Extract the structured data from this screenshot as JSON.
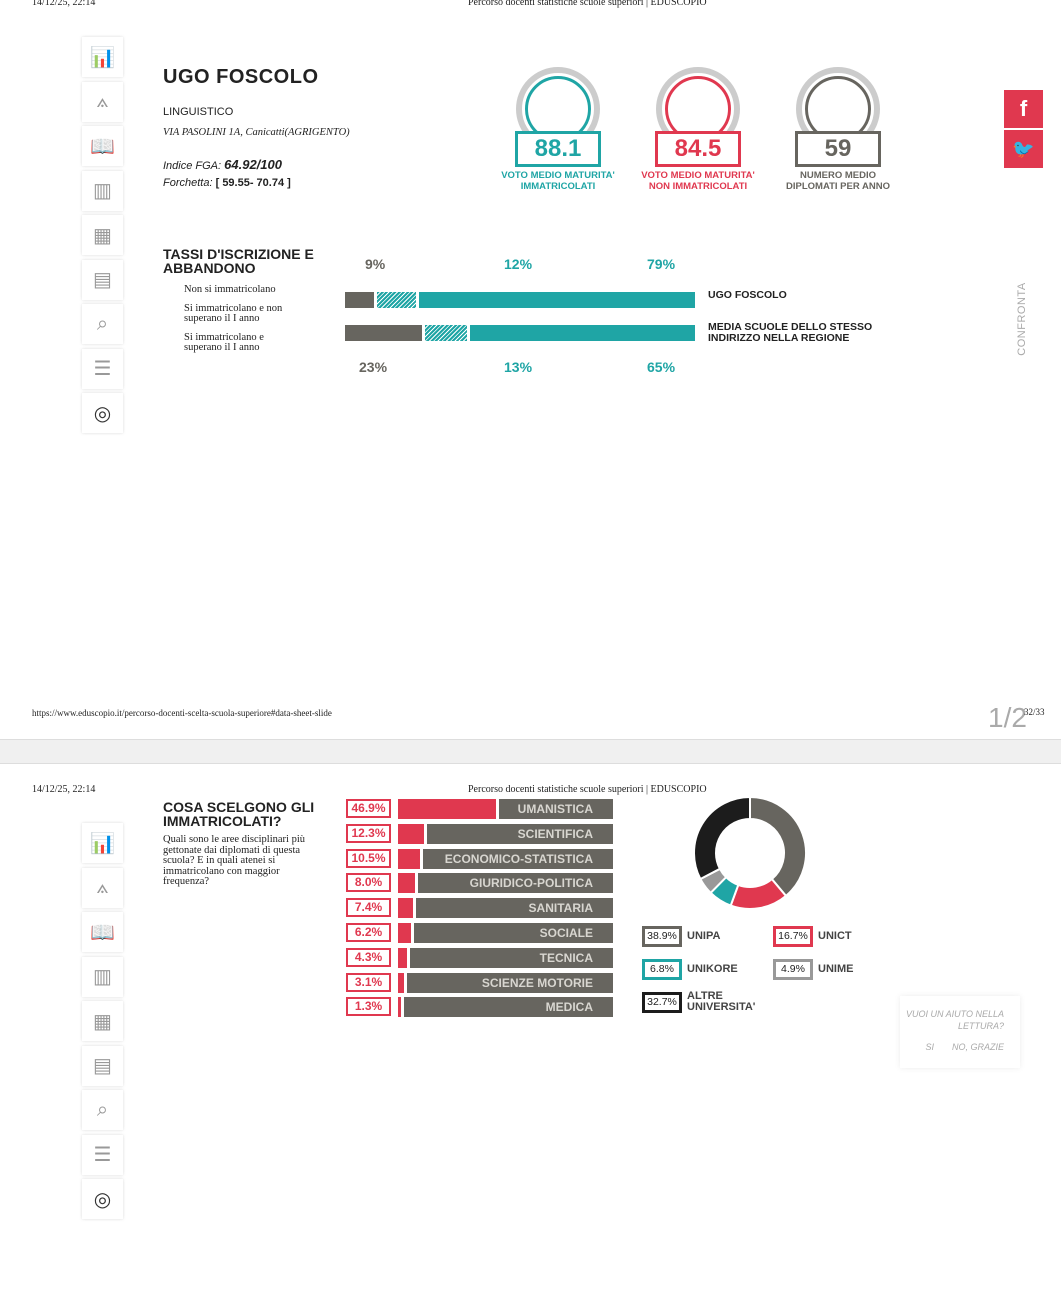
{
  "print_header": {
    "date": "14/12/25, 22:14",
    "title": "Percorso docenti statistiche scuole superiori | EDUSCOPIO"
  },
  "print_footer": {
    "url": "https://www.eduscopio.it/percorso-docenti-scelta-scuola-superiore#data-sheet-slide",
    "page": "32/33",
    "slide_counter": "1/2"
  },
  "sidebar": {
    "icons": [
      "chart-bars-icon",
      "compass-icon",
      "book-icon",
      "library-icon",
      "classroom-icon",
      "certificate-icon",
      "search-icon",
      "list-icon",
      "compare-disc-icon"
    ]
  },
  "school": {
    "name": "UGO FOSCOLO",
    "type": "LINGUISTICO",
    "address": "VIA PASOLINI 1A, Canicatti(AGRIGENTO)",
    "fga_label": "Indice FGA:",
    "fga_value": "64.92/100",
    "range_label": "Forchetta:",
    "range_value": "[ 59.55- 70.74 ]"
  },
  "kpis": [
    {
      "value": "88.1",
      "label": "VOTO MEDIO MATURITA' IMMATRICOLATI",
      "color": "#1fa5a5"
    },
    {
      "value": "84.5",
      "label": "VOTO MEDIO MATURITA' NON IMMATRICOLATI",
      "color": "#e0384f"
    },
    {
      "value": "59",
      "label": "NUMERO MEDIO DIPLOMATI PER ANNO",
      "color": "#67655f"
    }
  ],
  "social": {
    "facebook": "f",
    "twitter": "twitter-icon"
  },
  "confronta": "CONFRONTA",
  "rates": {
    "title": "TASSI D'ISCRIZIONE E ABBANDONO",
    "legend": [
      "Non si immatricolano",
      "Si immatricolano e non superano il I anno",
      "Si immatricolano e superano il I anno"
    ],
    "school": {
      "label": "UGO FOSCOLO",
      "values": [
        9,
        12,
        79
      ],
      "labels": [
        "9%",
        "12%",
        "79%"
      ]
    },
    "region": {
      "label": "MEDIA SCUOLE DELLO STESSO INDIRIZZO NELLA REGIONE",
      "values": [
        23,
        13,
        65
      ],
      "labels": [
        "23%",
        "13%",
        "65%"
      ]
    },
    "colors": {
      "not_enrolled": "#67655f",
      "dropout": "#1fa5a5",
      "enrolled": "#1fa5a5"
    }
  },
  "choices": {
    "title": "COSA SCELGONO GLI IMMATRICOLATI?",
    "description": "Quali sono le aree disciplinari più gettonate dai diplomati di questa scuola? E in quali atenei si immatricolano con maggior frequenza?",
    "areas": [
      {
        "label": "UMANISTICA",
        "pct": "46.9%",
        "value": 46.9
      },
      {
        "label": "SCIENTIFICA",
        "pct": "12.3%",
        "value": 12.3
      },
      {
        "label": "ECONOMICO-STATISTICA",
        "pct": "10.5%",
        "value": 10.5
      },
      {
        "label": "GIURIDICO-POLITICA",
        "pct": "8.0%",
        "value": 8.0
      },
      {
        "label": "SANITARIA",
        "pct": "7.4%",
        "value": 7.4
      },
      {
        "label": "SOCIALE",
        "pct": "6.2%",
        "value": 6.2
      },
      {
        "label": "TECNICA",
        "pct": "4.3%",
        "value": 4.3
      },
      {
        "label": "SCIENZE MOTORIE",
        "pct": "3.1%",
        "value": 3.1
      },
      {
        "label": "MEDICA",
        "pct": "1.3%",
        "value": 1.3
      }
    ],
    "universities": [
      {
        "label": "UNIPA",
        "pct": "38.9%",
        "value": 38.9,
        "color": "#67655f"
      },
      {
        "label": "UNICT",
        "pct": "16.7%",
        "value": 16.7,
        "color": "#e0384f"
      },
      {
        "label": "UNIKORE",
        "pct": "6.8%",
        "value": 6.8,
        "color": "#1fa5a5"
      },
      {
        "label": "UNIME",
        "pct": "4.9%",
        "value": 4.9,
        "color": "#999999"
      },
      {
        "label": "ALTRE UNIVERSITA'",
        "pct": "32.7%",
        "value": 32.7,
        "color": "#1c1c1c"
      }
    ]
  },
  "help_popup": {
    "question": "VUOI UN AIUTO NELLA LETTURA?",
    "yes": "SI",
    "no": "NO, GRAZIE"
  }
}
